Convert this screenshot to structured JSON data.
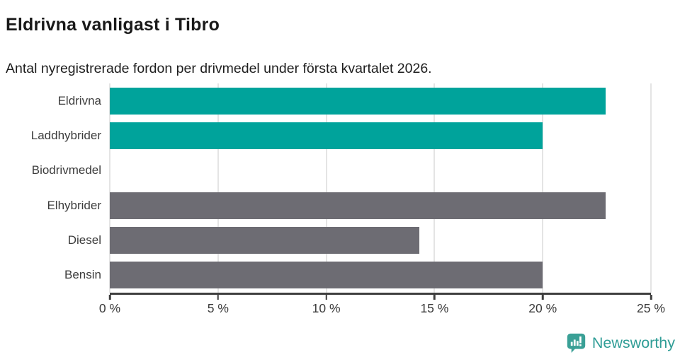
{
  "header": {
    "title": "Eldrivna vanligast i Tibro",
    "subtitle": "Antal nyregistrerade fordon per drivmedel under första kvartalet 2026."
  },
  "chart_data": {
    "type": "bar",
    "orientation": "horizontal",
    "title": "Eldrivna vanligast i Tibro",
    "subtitle": "Antal nyregistrerade fordon per drivmedel under första kvartalet 2026.",
    "categories": [
      "Eldrivna",
      "Laddhybrider",
      "Biodrivmedel",
      "Elhybrider",
      "Diesel",
      "Bensin"
    ],
    "values": [
      22.9,
      20,
      0,
      22.9,
      14.3,
      20
    ],
    "unit": "%",
    "bar_colors": [
      "#00a39b",
      "#00a39b",
      "#00a39b",
      "#6d6c73",
      "#6d6c73",
      "#6d6c73"
    ],
    "xlim": [
      0,
      25
    ],
    "x_ticks": [
      0,
      5,
      10,
      15,
      20,
      25
    ],
    "x_tick_labels": [
      "0 %",
      "5 %",
      "10 %",
      "15 %",
      "20 %",
      "25 %"
    ],
    "xlabel": "",
    "ylabel": "",
    "grid": "vertical-only",
    "legend": "none"
  },
  "colors": {
    "teal_bar": "#00a39b",
    "gray_bar": "#6d6c73",
    "gridline": "#e4e4e4",
    "axis": "#3f3f3f",
    "logo_teal": "#2f9d96"
  },
  "footer": {
    "brand": "Newsworthy"
  }
}
